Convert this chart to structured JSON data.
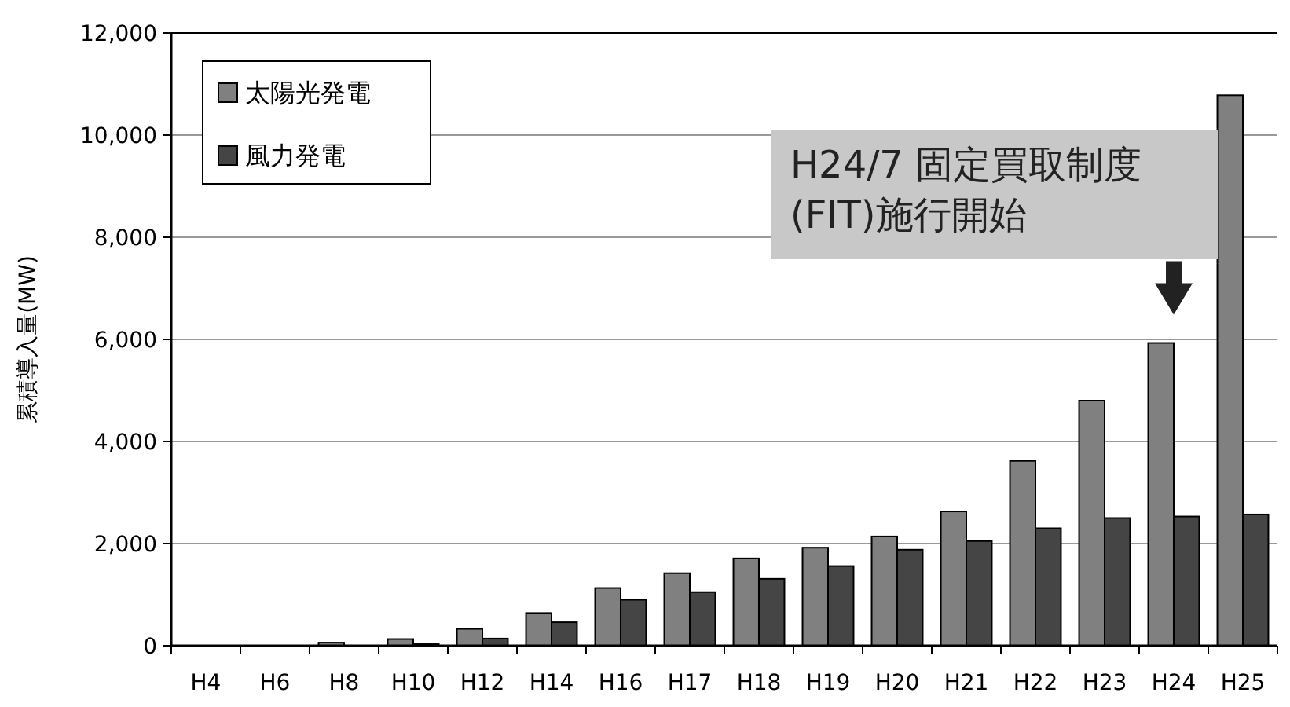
{
  "chart_data": {
    "type": "bar",
    "ylabel": "累積導入量(MW)",
    "categories": [
      "H4",
      "H6",
      "H8",
      "H10",
      "H12",
      "H14",
      "H16",
      "H17",
      "H18",
      "H19",
      "H20",
      "H21",
      "H22",
      "H23",
      "H24",
      "H25"
    ],
    "series": [
      {
        "name": "太陽光発電",
        "color": "#808080",
        "values": [
          null,
          null,
          60,
          130,
          330,
          640,
          1130,
          1420,
          1710,
          1920,
          2140,
          2630,
          3620,
          4800,
          5930,
          10780
        ]
      },
      {
        "name": "風力発電",
        "color": "#454545",
        "values": [
          0,
          null,
          null,
          30,
          140,
          460,
          900,
          1050,
          1310,
          1560,
          1880,
          2050,
          2300,
          2500,
          2530,
          2570
        ]
      }
    ],
    "ylim": [
      0,
      12000
    ],
    "yticks": [
      {
        "value": 0,
        "label": "0"
      },
      {
        "value": 2000,
        "label": "2,000"
      },
      {
        "value": 4000,
        "label": "4,000"
      },
      {
        "value": 6000,
        "label": "6,000"
      },
      {
        "value": 8000,
        "label": "8,000"
      },
      {
        "value": 10000,
        "label": "10,000"
      },
      {
        "value": 12000,
        "label": "12,000"
      }
    ],
    "grid": "y",
    "legend": "top left",
    "annotations": [
      {
        "text": "H24/7 固定買取制度\n(FIT)施行開始",
        "x": "H24",
        "y": 5930
      }
    ]
  }
}
